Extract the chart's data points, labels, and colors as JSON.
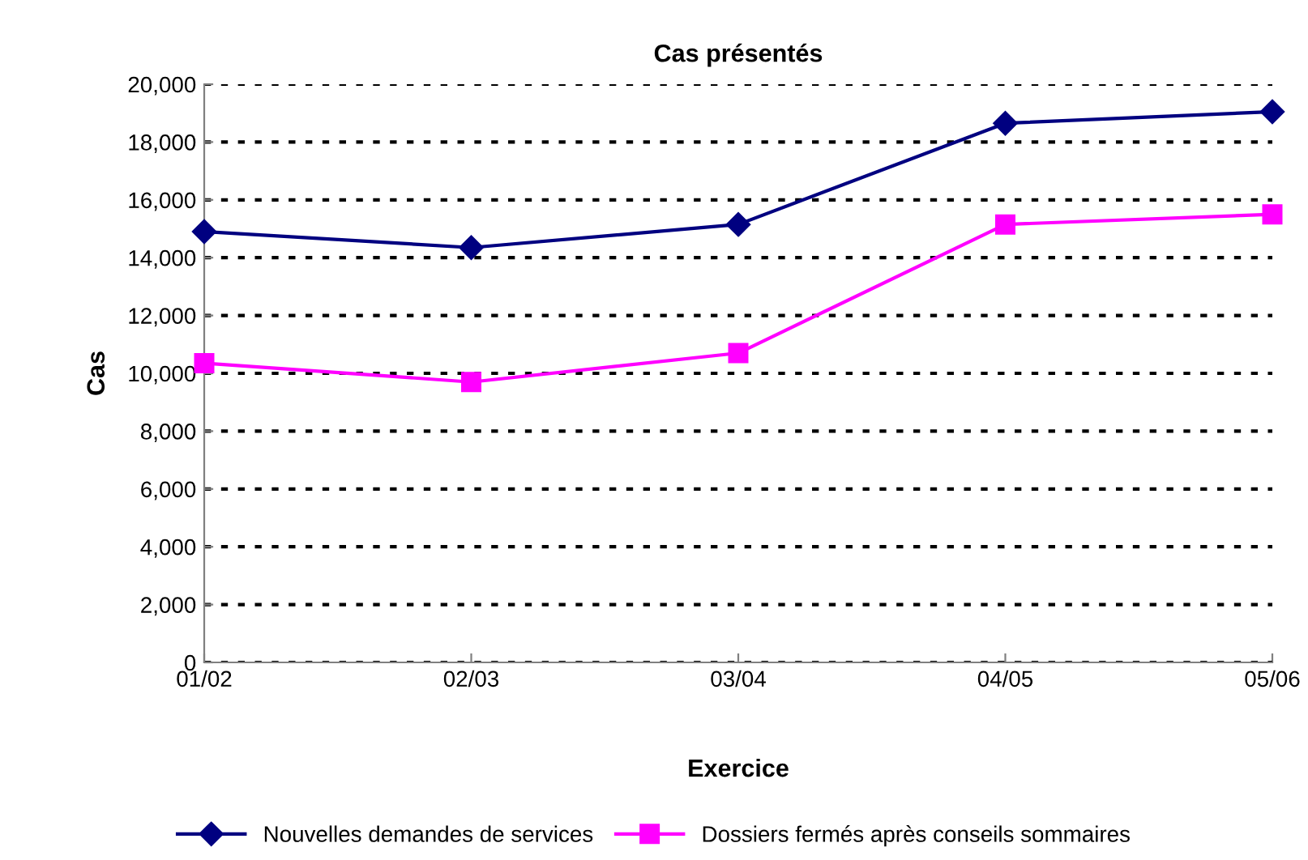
{
  "chart_data": {
    "type": "line",
    "title": "Cas présentés",
    "xlabel": "Exercice",
    "ylabel": "Cas",
    "categories": [
      "01/02",
      "02/03",
      "03/04",
      "04/05",
      "05/06"
    ],
    "series": [
      {
        "name": "Nouvelles demandes de services",
        "color": "#000080",
        "marker": "diamond",
        "values": [
          14900,
          14350,
          15150,
          18650,
          19050
        ]
      },
      {
        "name": "Dossiers fermés après conseils sommaires",
        "color": "#ff00ff",
        "marker": "square",
        "values": [
          10350,
          9700,
          10700,
          15150,
          15500
        ]
      }
    ],
    "ylim": [
      0,
      20000
    ],
    "yticks": [
      {
        "value": 0,
        "label": "0"
      },
      {
        "value": 2000,
        "label": "2,000"
      },
      {
        "value": 4000,
        "label": "4,000"
      },
      {
        "value": 6000,
        "label": "6,000"
      },
      {
        "value": 8000,
        "label": "8,000"
      },
      {
        "value": 10000,
        "label": "10,000"
      },
      {
        "value": 12000,
        "label": "12,000"
      },
      {
        "value": 14000,
        "label": "14,000"
      },
      {
        "value": 16000,
        "label": "16,000"
      },
      {
        "value": 18000,
        "label": "18,000"
      },
      {
        "value": 20000,
        "label": "20,000"
      }
    ],
    "grid": "y",
    "legend": "bottom",
    "line_style": "solid"
  }
}
